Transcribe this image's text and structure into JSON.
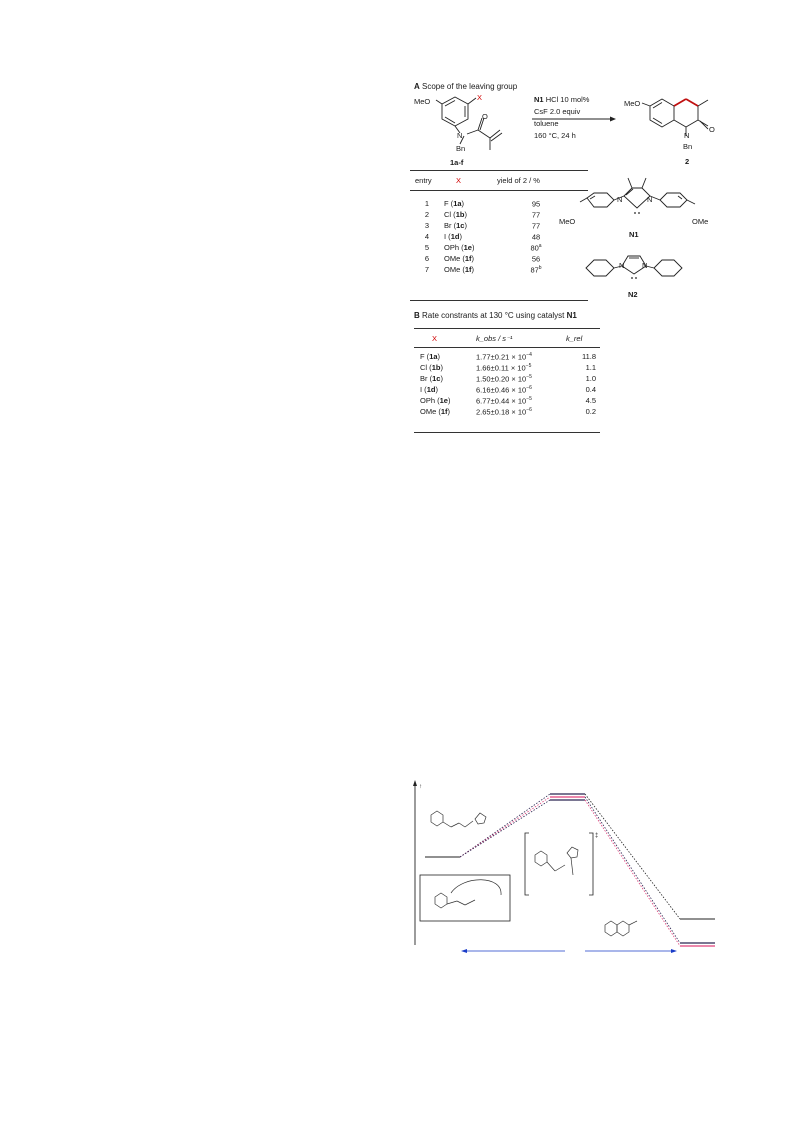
{
  "section_a": {
    "letter": "A",
    "title": "Scope of the leaving group",
    "substrate": {
      "meo": "MeO",
      "x": "X",
      "bn": "Bn",
      "o": "O",
      "n": "N",
      "label": "1a-f"
    },
    "conditions": {
      "catalyst": "N1",
      "catalyst_rest": "HCl  10 mol%",
      "base": "CsF    2.0 equiv",
      "solvent": "toluene",
      "temp": "160 °C, 24 h"
    },
    "product": {
      "meo": "MeO",
      "bn": "Bn",
      "o": "O",
      "n": "N",
      "label": "2"
    },
    "table": {
      "headers": [
        "entry",
        "X",
        "yield of 2 / %"
      ],
      "rows": [
        {
          "entry": "1",
          "x": "F",
          "cmpd": "1a",
          "yield": "95",
          "note": ""
        },
        {
          "entry": "2",
          "x": "Cl",
          "cmpd": "1b",
          "yield": "77",
          "note": ""
        },
        {
          "entry": "3",
          "x": "Br",
          "cmpd": "1c",
          "yield": "77",
          "note": ""
        },
        {
          "entry": "4",
          "x": "I",
          "cmpd": "1d",
          "yield": "48",
          "note": ""
        },
        {
          "entry": "5",
          "x": "OPh",
          "cmpd": "1e",
          "yield": "80",
          "note": "a"
        },
        {
          "entry": "6",
          "x": "OMe",
          "cmpd": "1f",
          "yield": "56",
          "note": ""
        },
        {
          "entry": "7",
          "x": "OMe",
          "cmpd": "1f",
          "yield": "87",
          "note": "b"
        }
      ]
    },
    "catalysts": {
      "n1_label": "N1",
      "n2_label": "N2",
      "meo": "MeO",
      "ome": "OMe",
      "n": "N"
    }
  },
  "section_b": {
    "letter": "B",
    "title": "Rate constrants at 130 °C using catalyst",
    "title_catalyst": "N1",
    "headers": [
      "X",
      "k_obs / s⁻¹",
      "k_rel"
    ],
    "rows": [
      {
        "x": "F",
        "cmpd": "1a",
        "kobs": "1.77±0.21 × 10",
        "exp": "−4",
        "krel": "11.8"
      },
      {
        "x": "Cl",
        "cmpd": "1b",
        "kobs": "1.66±0.11 × 10",
        "exp": "−5",
        "krel": "1.1"
      },
      {
        "x": "Br",
        "cmpd": "1c",
        "kobs": "1.50±0.20 × 10",
        "exp": "−5",
        "krel": "1.0"
      },
      {
        "x": "I",
        "cmpd": "1d",
        "kobs": "6.16±0.46 × 10",
        "exp": "−6",
        "krel": "0.4"
      },
      {
        "x": "OPh",
        "cmpd": "1e",
        "kobs": "6.77±0.44 × 10",
        "exp": "−5",
        "krel": "4.5"
      },
      {
        "x": "OMe",
        "cmpd": "1f",
        "kobs": "2.65±0.18 × 10",
        "exp": "−6",
        "krel": "0.2"
      }
    ]
  },
  "energy_diagram": {
    "y_axis_label": "↑",
    "ts_dagger": "‡"
  },
  "colors": {
    "accent_red": "#d10000",
    "pink": "#e0407a",
    "navy": "#2a2450",
    "arrow_blue": "#1a3cc8",
    "text": "#1a1a1a"
  }
}
